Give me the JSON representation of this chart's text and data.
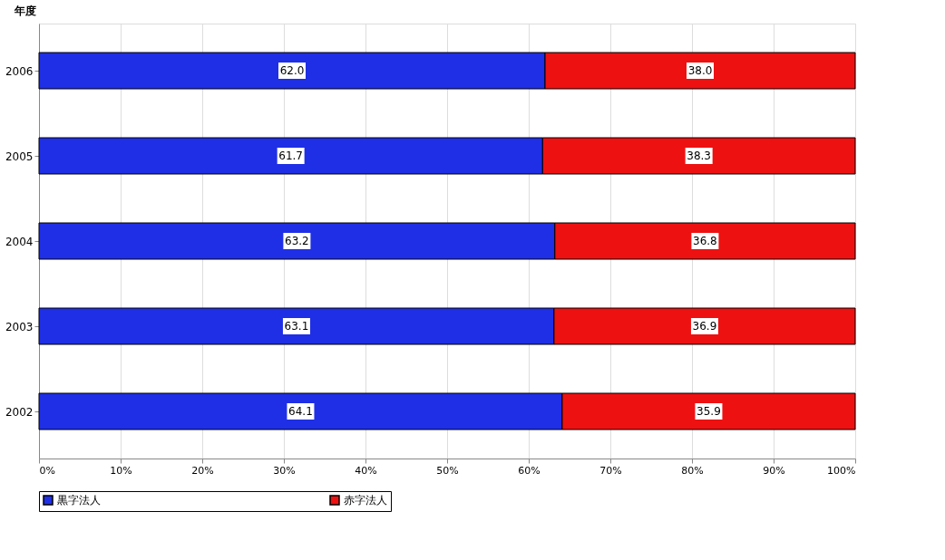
{
  "chart_data": {
    "type": "bar",
    "orientation": "horizontal",
    "stacked": true,
    "ylabel": "年度",
    "categories": [
      "2006",
      "2005",
      "2004",
      "2003",
      "2002"
    ],
    "series": [
      {
        "name": "黒字法人",
        "color": "#1f2fe6",
        "values": [
          62.0,
          61.7,
          63.2,
          63.1,
          64.1
        ],
        "value_labels": [
          "62.0",
          "61.7",
          "63.2",
          "63.1",
          "64.1"
        ]
      },
      {
        "name": "赤字法人",
        "color": "#ee1111",
        "values": [
          38.0,
          38.3,
          36.8,
          36.9,
          35.9
        ],
        "value_labels": [
          "38.0",
          "38.3",
          "36.8",
          "36.9",
          "35.9"
        ]
      }
    ],
    "xlim": [
      0,
      100
    ],
    "xticks": [
      {
        "value": 0,
        "label": "0%"
      },
      {
        "value": 10,
        "label": "10%"
      },
      {
        "value": 20,
        "label": "20%"
      },
      {
        "value": 30,
        "label": "30%"
      },
      {
        "value": 40,
        "label": "40%"
      },
      {
        "value": 50,
        "label": "50%"
      },
      {
        "value": 60,
        "label": "60%"
      },
      {
        "value": 70,
        "label": "70%"
      },
      {
        "value": 80,
        "label": "80%"
      },
      {
        "value": 90,
        "label": "90%"
      },
      {
        "value": 100,
        "label": "100%"
      }
    ],
    "grid": "x",
    "legend": "bottom"
  }
}
